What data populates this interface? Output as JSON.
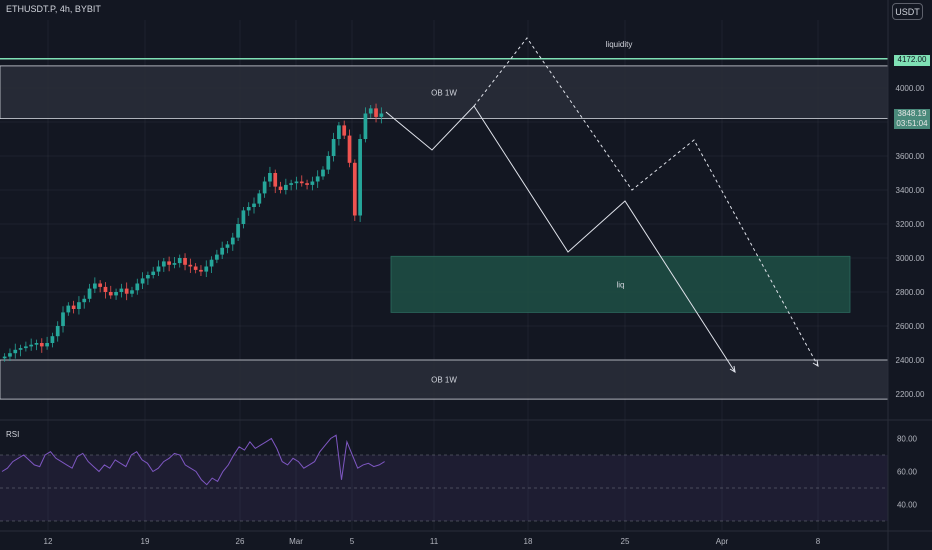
{
  "header": {
    "symbol": "ETHUSDT.P, 4h, BYBIT",
    "currency": "USDT"
  },
  "colors": {
    "bg": "#131722",
    "up": "#26a69a",
    "down": "#ef5350",
    "grid": "#2a2e39",
    "zone_grey": "#2a2e39",
    "zone_green": "#1e4d44",
    "liquidity_line": "#7fe0b5",
    "rsi_line": "#7e57c2"
  },
  "chart_data": {
    "type": "candlestick",
    "y_ticks": [
      4000,
      3800,
      3600,
      3400,
      3200,
      3000,
      2800,
      2600,
      2400,
      2200
    ],
    "x_ticks": [
      "12",
      "19",
      "26",
      "Mar",
      "5",
      "11",
      "18",
      "25",
      "Apr",
      "8"
    ],
    "price_min": 2170,
    "price_max": 4200,
    "price_tags": [
      {
        "value": "4172.00",
        "color": "#7fe0b5"
      },
      {
        "value": "3848.19",
        "countdown": "03:51:04",
        "color": "#4a8a7b"
      }
    ],
    "zones": [
      {
        "label": "OB 1W",
        "from": 3820,
        "to": 4130,
        "kind": "grey"
      },
      {
        "label": "liq",
        "from": 2680,
        "to": 3010,
        "kind": "green"
      },
      {
        "label": "OB 1W",
        "from": 2170,
        "to": 2400,
        "kind": "grey"
      }
    ],
    "liquidity": {
      "label": "liquidity",
      "level": 4172
    },
    "close_series": [
      2420,
      2440,
      2460,
      2470,
      2480,
      2490,
      2500,
      2480,
      2500,
      2540,
      2600,
      2680,
      2720,
      2700,
      2740,
      2760,
      2820,
      2850,
      2830,
      2800,
      2780,
      2800,
      2820,
      2790,
      2810,
      2850,
      2880,
      2900,
      2920,
      2950,
      2980,
      2960,
      2970,
      3000,
      2960,
      2950,
      2930,
      2920,
      2950,
      2990,
      3020,
      3060,
      3080,
      3120,
      3200,
      3280,
      3300,
      3320,
      3380,
      3450,
      3500,
      3420,
      3400,
      3430,
      3440,
      3450,
      3440,
      3430,
      3450,
      3480,
      3520,
      3600,
      3700,
      3780,
      3720,
      3560,
      3250,
      3700,
      3850,
      3880,
      3830,
      3850
    ],
    "projection_solid": [
      [
        386,
        112
      ],
      [
        432,
        150
      ],
      [
        474,
        106
      ],
      [
        568,
        252
      ],
      [
        625,
        201
      ],
      [
        735,
        372
      ]
    ],
    "projection_dashed": [
      [
        474,
        106
      ],
      [
        527,
        38
      ],
      [
        632,
        190
      ],
      [
        694,
        140
      ],
      [
        818,
        366
      ]
    ],
    "rsi": {
      "ticks": [
        80,
        60,
        40
      ],
      "upper": 70,
      "lower": 30,
      "min": 25,
      "max": 85,
      "values": [
        60,
        62,
        66,
        68,
        70,
        67,
        64,
        63,
        70,
        72,
        68,
        66,
        64,
        62,
        69,
        71,
        66,
        63,
        60,
        64,
        62,
        67,
        65,
        63,
        70,
        72,
        67,
        65,
        60,
        62,
        66,
        68,
        71,
        70,
        64,
        62,
        60,
        55,
        52,
        56,
        54,
        60,
        64,
        70,
        75,
        73,
        78,
        74,
        76,
        78,
        80,
        74,
        66,
        64,
        68,
        66,
        62,
        64,
        66,
        72,
        76,
        80,
        82,
        55,
        78,
        70,
        62,
        64,
        65,
        63,
        64,
        66
      ]
    }
  }
}
